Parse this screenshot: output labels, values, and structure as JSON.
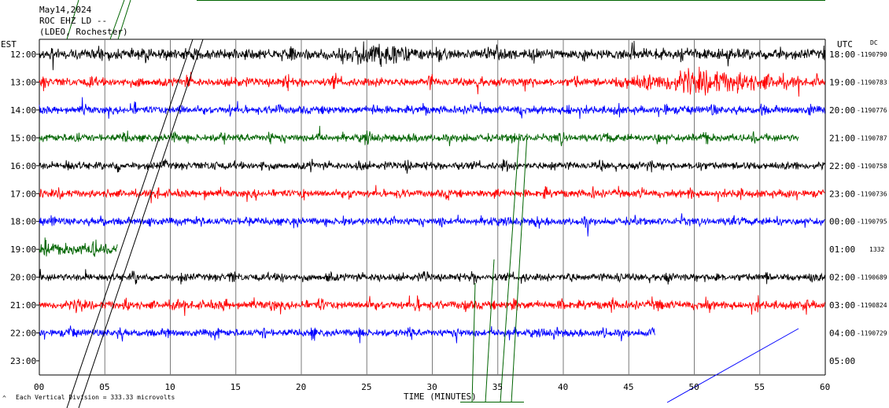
{
  "header": {
    "date": "May14,2024",
    "station": "ROC EHZ LD --",
    "network": "(LDEO, Rochester)"
  },
  "left_axis_label": "EST",
  "right_axis_label": "UTC",
  "dc_label": "DC",
  "footer_note": "Each Vertical Division =  333.33 microvolts",
  "chart_data": {
    "type": "line",
    "title": "",
    "xlabel": "TIME (MINUTES)",
    "ylabel": "",
    "xlim": [
      0,
      60
    ],
    "x_ticks": [
      "00",
      "05",
      "10",
      "15",
      "20",
      "25",
      "30",
      "35",
      "40",
      "45",
      "50",
      "55",
      "60"
    ],
    "grid": true,
    "trace_colors": [
      "#000000",
      "#ff0000",
      "#0000ff",
      "#006400"
    ],
    "rows": [
      {
        "est": "12:00",
        "utc": "18:00",
        "dc": "-1190790",
        "color": "#000000",
        "amplitude": 0.55,
        "data_end_min": 60
      },
      {
        "est": "13:00",
        "utc": "19:00",
        "dc": "-1190783",
        "color": "#ff0000",
        "amplitude": 0.45,
        "data_end_min": 60
      },
      {
        "est": "14:00",
        "utc": "20:00",
        "dc": "-1190776",
        "color": "#0000ff",
        "amplitude": 0.42,
        "data_end_min": 60
      },
      {
        "est": "15:00",
        "utc": "21:00",
        "dc": "-1190787",
        "color": "#006400",
        "amplitude": 0.4,
        "data_end_min": 58
      },
      {
        "est": "16:00",
        "utc": "22:00",
        "dc": "-1190758",
        "color": "#000000",
        "amplitude": 0.4,
        "data_end_min": 60
      },
      {
        "est": "17:00",
        "utc": "23:00",
        "dc": "-1190736",
        "color": "#ff0000",
        "amplitude": 0.4,
        "data_end_min": 60
      },
      {
        "est": "18:00",
        "utc": "00:00",
        "dc": "-1190795",
        "color": "#0000ff",
        "amplitude": 0.4,
        "data_end_min": 60
      },
      {
        "est": "19:00",
        "utc": "01:00",
        "dc": "1332",
        "color": "#006400",
        "amplitude": 0.6,
        "data_end_min": 6
      },
      {
        "est": "20:00",
        "utc": "02:00",
        "dc": "-1190689",
        "color": "#000000",
        "amplitude": 0.4,
        "data_end_min": 60
      },
      {
        "est": "21:00",
        "utc": "03:00",
        "dc": "-1190824",
        "color": "#ff0000",
        "amplitude": 0.45,
        "data_end_min": 60
      },
      {
        "est": "22:00",
        "utc": "04:00",
        "dc": "-1190729",
        "color": "#0000ff",
        "amplitude": 0.4,
        "data_end_min": 47
      },
      {
        "est": "23:00",
        "utc": "05:00",
        "dc": "",
        "color": "#000000",
        "amplitude": 0,
        "data_end_min": 0
      }
    ],
    "events": [
      {
        "row": 0,
        "start_min": 23,
        "end_min": 29,
        "amplitude": 1.0
      },
      {
        "row": 1,
        "start_min": 44,
        "end_min": 58,
        "amplitude": 1.0
      }
    ]
  }
}
